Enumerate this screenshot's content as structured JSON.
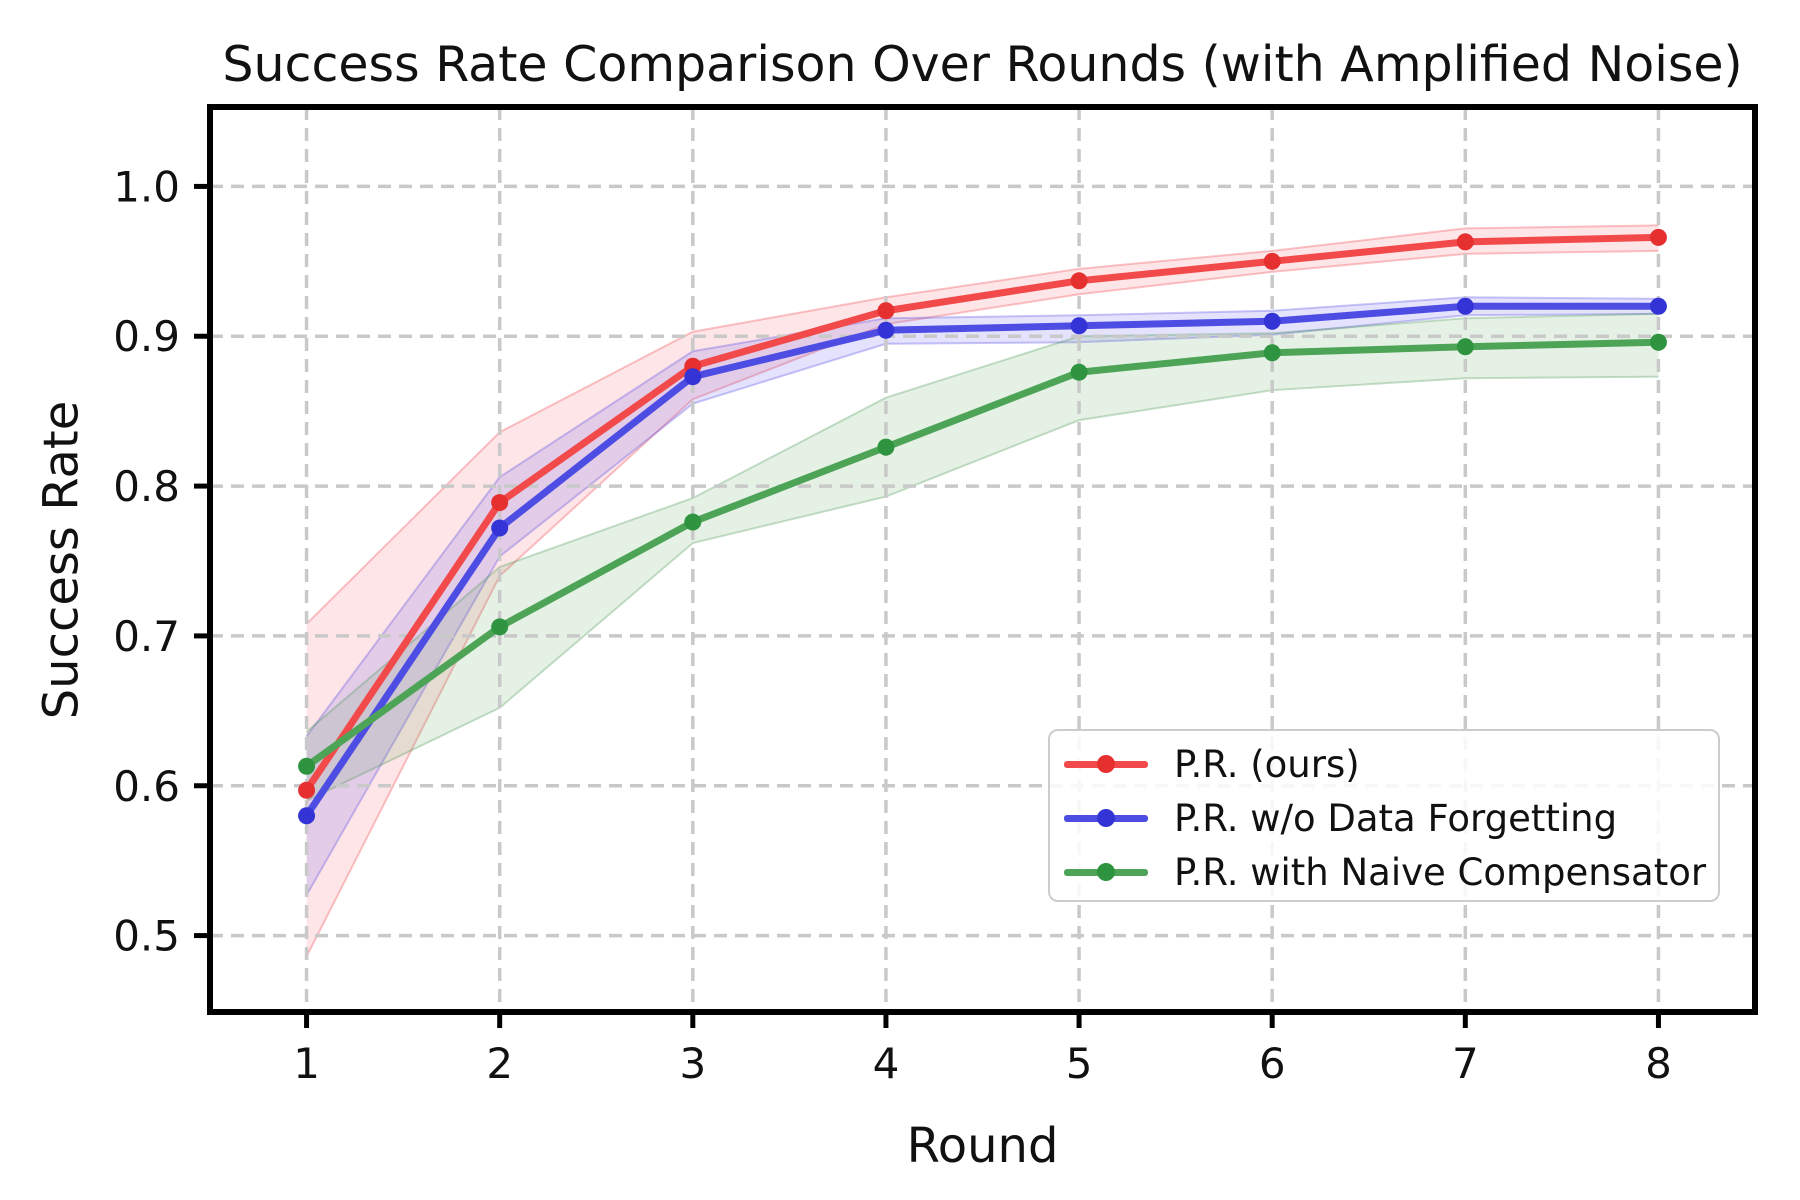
{
  "figure": {
    "title": "Success Rate Comparison Over Rounds (with Amplified Noise)",
    "xlabel": "Round",
    "ylabel": "Success Rate"
  },
  "chart_data": {
    "type": "line",
    "title": "Success Rate Comparison Over Rounds (with Amplified Noise)",
    "xlabel": "Round",
    "ylabel": "Success Rate",
    "x": [
      1,
      2,
      3,
      4,
      5,
      6,
      7,
      8
    ],
    "xlim": [
      0.5,
      8.5
    ],
    "ylim": [
      0.449,
      1.053
    ],
    "xtick_labels": [
      "1",
      "2",
      "3",
      "4",
      "5",
      "6",
      "7",
      "8"
    ],
    "ytick_values": [
      0.5,
      0.6,
      0.7,
      0.8,
      0.9,
      1.0
    ],
    "ytick_labels": [
      "0.5",
      "0.6",
      "0.7",
      "0.8",
      "0.9",
      "1.0"
    ],
    "grid": true,
    "grid_style": "dashed",
    "grid_color": "#c9c9c9",
    "legend_position": "center-right",
    "series": [
      {
        "name": "P.R. (ours)",
        "color": "#f24a4a",
        "marker_color": "#e63030",
        "band_fill": "rgba(245,80,95,0.15)",
        "band_edge": "rgba(240,60,70,0.30)",
        "values": [
          0.597,
          0.789,
          0.88,
          0.917,
          0.937,
          0.95,
          0.963,
          0.966
        ],
        "band_low": [
          0.486,
          0.74,
          0.858,
          0.908,
          0.928,
          0.943,
          0.955,
          0.957
        ],
        "band_high": [
          0.708,
          0.836,
          0.903,
          0.926,
          0.945,
          0.957,
          0.972,
          0.974
        ]
      },
      {
        "name": "P.R. w/o Data Forgetting",
        "color": "#4d4de4",
        "marker_color": "#3434d6",
        "band_fill": "rgba(95,85,235,0.17)",
        "band_edge": "rgba(80,70,230,0.30)",
        "values": [
          0.58,
          0.772,
          0.873,
          0.904,
          0.907,
          0.91,
          0.92,
          0.92
        ],
        "band_low": [
          0.527,
          0.753,
          0.855,
          0.895,
          0.896,
          0.901,
          0.914,
          0.915
        ],
        "band_high": [
          0.633,
          0.806,
          0.89,
          0.912,
          0.914,
          0.917,
          0.926,
          0.925
        ]
      },
      {
        "name": "P.R. with Naive Compensator",
        "color": "#4da457",
        "marker_color": "#2f9440",
        "band_fill": "rgba(85,160,90,0.15)",
        "band_edge": "rgba(70,150,80,0.30)",
        "values": [
          0.613,
          0.706,
          0.776,
          0.826,
          0.876,
          0.889,
          0.893,
          0.896
        ],
        "band_low": [
          0.59,
          0.652,
          0.762,
          0.793,
          0.844,
          0.864,
          0.872,
          0.873
        ],
        "band_high": [
          0.636,
          0.746,
          0.792,
          0.859,
          0.9,
          0.902,
          0.912,
          0.915
        ]
      }
    ]
  }
}
